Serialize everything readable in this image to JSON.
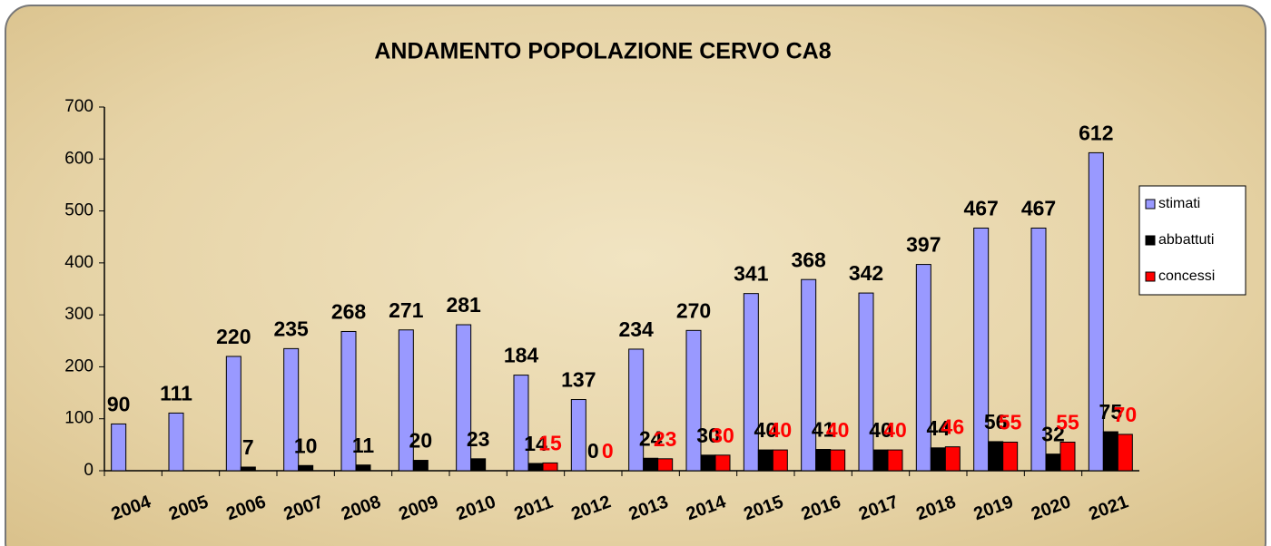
{
  "chart_data": {
    "type": "bar",
    "title": "ANDAMENTO POPOLAZIONE CERVO CA8",
    "categories": [
      "2004",
      "2005",
      "2006",
      "2007",
      "2008",
      "2009",
      "2010",
      "2011",
      "2012",
      "2013",
      "2014",
      "2015",
      "2016",
      "2017",
      "2018",
      "2019",
      "2020",
      "2021"
    ],
    "series": [
      {
        "name": "stimati",
        "color": "#9999ff",
        "label_color": "#000000",
        "values": [
          90,
          111,
          220,
          235,
          268,
          271,
          281,
          184,
          137,
          234,
          270,
          341,
          368,
          342,
          397,
          467,
          467,
          612
        ]
      },
      {
        "name": "abbattuti",
        "color": "#000000",
        "label_color": "#000000",
        "values": [
          null,
          null,
          7,
          10,
          11,
          20,
          23,
          14,
          0,
          24,
          30,
          40,
          41,
          40,
          44,
          56,
          32,
          75
        ]
      },
      {
        "name": "concessi",
        "color": "#ff0000",
        "label_color": "#ff0000",
        "values": [
          null,
          null,
          null,
          null,
          null,
          null,
          null,
          15,
          0,
          23,
          30,
          40,
          40,
          40,
          46,
          55,
          55,
          70
        ]
      }
    ],
    "ylim": [
      0,
      700
    ],
    "yticks": [
      0,
      100,
      200,
      300,
      400,
      500,
      600,
      700
    ],
    "legend": "right"
  }
}
